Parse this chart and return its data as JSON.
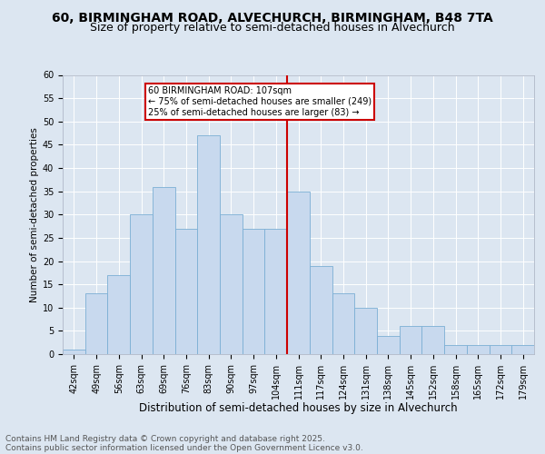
{
  "title1": "60, BIRMINGHAM ROAD, ALVECHURCH, BIRMINGHAM, B48 7TA",
  "title2": "Size of property relative to semi-detached houses in Alvechurch",
  "xlabel": "Distribution of semi-detached houses by size in Alvechurch",
  "ylabel": "Number of semi-detached properties",
  "categories": [
    "42sqm",
    "49sqm",
    "56sqm",
    "63sqm",
    "69sqm",
    "76sqm",
    "83sqm",
    "90sqm",
    "97sqm",
    "104sqm",
    "111sqm",
    "117sqm",
    "124sqm",
    "131sqm",
    "138sqm",
    "145sqm",
    "152sqm",
    "158sqm",
    "165sqm",
    "172sqm",
    "179sqm"
  ],
  "values": [
    1,
    13,
    17,
    30,
    36,
    27,
    47,
    30,
    27,
    27,
    35,
    19,
    13,
    10,
    4,
    6,
    6,
    2,
    2,
    2,
    2
  ],
  "bar_color": "#c8d9ee",
  "bar_edge_color": "#7bafd4",
  "vline_x_index": 10,
  "vline_color": "#cc0000",
  "annotation_box_text": "60 BIRMINGHAM ROAD: 107sqm\n← 75% of semi-detached houses are smaller (249)\n25% of semi-detached houses are larger (83) →",
  "annotation_box_color": "#cc0000",
  "annotation_box_fill": "#ffffff",
  "ylim": [
    0,
    60
  ],
  "yticks": [
    0,
    5,
    10,
    15,
    20,
    25,
    30,
    35,
    40,
    45,
    50,
    55,
    60
  ],
  "background_color": "#dce6f1",
  "plot_background_color": "#dce6f1",
  "footer_line1": "Contains HM Land Registry data © Crown copyright and database right 2025.",
  "footer_line2": "Contains public sector information licensed under the Open Government Licence v3.0.",
  "title1_fontsize": 10,
  "title2_fontsize": 9,
  "xlabel_fontsize": 8.5,
  "ylabel_fontsize": 7.5,
  "tick_fontsize": 7,
  "footer_fontsize": 6.5
}
